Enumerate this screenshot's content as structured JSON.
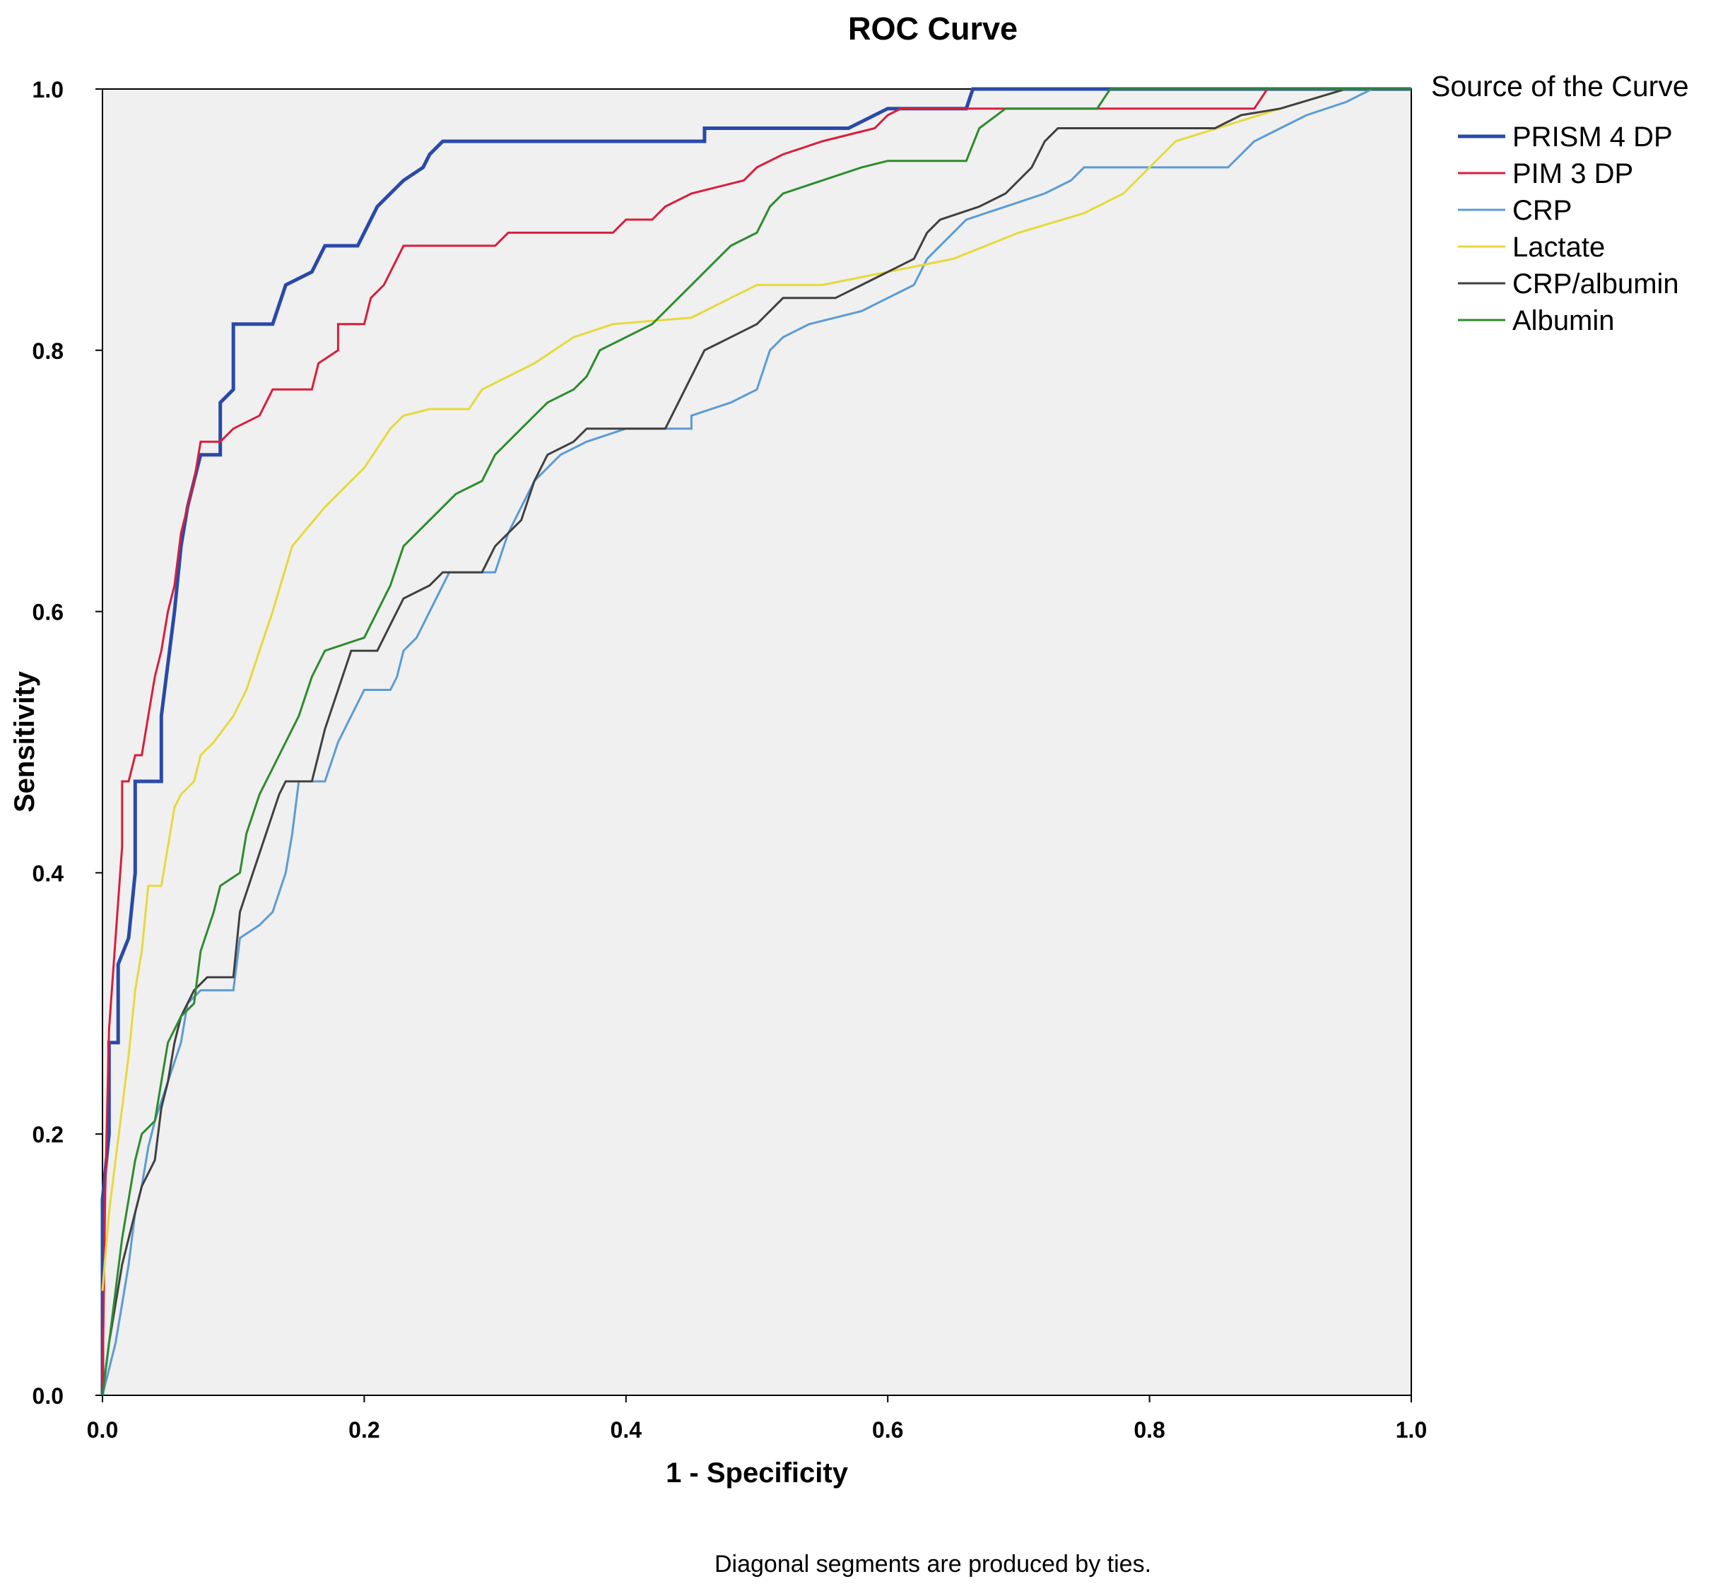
{
  "chart_data": {
    "type": "line",
    "title": "ROC Curve",
    "xlabel": "1 - Specificity",
    "ylabel": "Sensitivity",
    "xlim": [
      0,
      1
    ],
    "ylim": [
      0,
      1
    ],
    "x_ticks": [
      "0.0",
      "0.2",
      "0.4",
      "0.6",
      "0.8",
      "1.0"
    ],
    "y_ticks": [
      "0.0",
      "0.2",
      "0.4",
      "0.6",
      "0.8",
      "1.0"
    ],
    "legend_title": "Source of the Curve",
    "legend_position": "right",
    "footnote": "Diagonal segments are produced by ties.",
    "series": [
      {
        "name": "PRISM 4 DP",
        "color": "#2a4aa8",
        "points": [
          [
            0,
            0
          ],
          [
            0,
            0.15
          ],
          [
            0.005,
            0.2
          ],
          [
            0.005,
            0.27
          ],
          [
            0.012,
            0.27
          ],
          [
            0.012,
            0.33
          ],
          [
            0.02,
            0.35
          ],
          [
            0.025,
            0.4
          ],
          [
            0.025,
            0.47
          ],
          [
            0.045,
            0.47
          ],
          [
            0.045,
            0.52
          ],
          [
            0.05,
            0.56
          ],
          [
            0.055,
            0.6
          ],
          [
            0.06,
            0.65
          ],
          [
            0.065,
            0.68
          ],
          [
            0.07,
            0.7
          ],
          [
            0.075,
            0.72
          ],
          [
            0.09,
            0.72
          ],
          [
            0.09,
            0.76
          ],
          [
            0.1,
            0.77
          ],
          [
            0.1,
            0.82
          ],
          [
            0.13,
            0.82
          ],
          [
            0.14,
            0.85
          ],
          [
            0.16,
            0.86
          ],
          [
            0.17,
            0.88
          ],
          [
            0.195,
            0.88
          ],
          [
            0.2,
            0.89
          ],
          [
            0.21,
            0.91
          ],
          [
            0.22,
            0.92
          ],
          [
            0.23,
            0.93
          ],
          [
            0.245,
            0.94
          ],
          [
            0.25,
            0.95
          ],
          [
            0.26,
            0.96
          ],
          [
            0.46,
            0.96
          ],
          [
            0.46,
            0.97
          ],
          [
            0.57,
            0.97
          ],
          [
            0.6,
            0.985
          ],
          [
            0.66,
            0.985
          ],
          [
            0.665,
            1.0
          ],
          [
            1,
            1
          ]
        ]
      },
      {
        "name": "PIM 3 DP",
        "color": "#d81e3c",
        "points": [
          [
            0,
            0
          ],
          [
            0.002,
            0.15
          ],
          [
            0.005,
            0.28
          ],
          [
            0.01,
            0.35
          ],
          [
            0.015,
            0.42
          ],
          [
            0.015,
            0.47
          ],
          [
            0.02,
            0.47
          ],
          [
            0.025,
            0.49
          ],
          [
            0.03,
            0.49
          ],
          [
            0.035,
            0.52
          ],
          [
            0.04,
            0.55
          ],
          [
            0.045,
            0.57
          ],
          [
            0.05,
            0.6
          ],
          [
            0.055,
            0.62
          ],
          [
            0.06,
            0.66
          ],
          [
            0.065,
            0.68
          ],
          [
            0.07,
            0.7
          ],
          [
            0.075,
            0.73
          ],
          [
            0.09,
            0.73
          ],
          [
            0.1,
            0.74
          ],
          [
            0.12,
            0.75
          ],
          [
            0.13,
            0.77
          ],
          [
            0.16,
            0.77
          ],
          [
            0.165,
            0.79
          ],
          [
            0.18,
            0.8
          ],
          [
            0.18,
            0.82
          ],
          [
            0.2,
            0.82
          ],
          [
            0.205,
            0.84
          ],
          [
            0.215,
            0.85
          ],
          [
            0.225,
            0.87
          ],
          [
            0.23,
            0.88
          ],
          [
            0.3,
            0.88
          ],
          [
            0.31,
            0.89
          ],
          [
            0.39,
            0.89
          ],
          [
            0.4,
            0.9
          ],
          [
            0.42,
            0.9
          ],
          [
            0.43,
            0.91
          ],
          [
            0.45,
            0.92
          ],
          [
            0.49,
            0.93
          ],
          [
            0.5,
            0.94
          ],
          [
            0.52,
            0.95
          ],
          [
            0.55,
            0.96
          ],
          [
            0.59,
            0.97
          ],
          [
            0.6,
            0.98
          ],
          [
            0.61,
            0.985
          ],
          [
            0.88,
            0.985
          ],
          [
            0.89,
            1.0
          ],
          [
            1,
            1
          ]
        ]
      },
      {
        "name": "CRP",
        "color": "#5b9bd5",
        "points": [
          [
            0,
            0
          ],
          [
            0.01,
            0.04
          ],
          [
            0.015,
            0.07
          ],
          [
            0.02,
            0.1
          ],
          [
            0.025,
            0.14
          ],
          [
            0.03,
            0.16
          ],
          [
            0.035,
            0.19
          ],
          [
            0.04,
            0.21
          ],
          [
            0.05,
            0.24
          ],
          [
            0.06,
            0.27
          ],
          [
            0.065,
            0.3
          ],
          [
            0.075,
            0.31
          ],
          [
            0.1,
            0.31
          ],
          [
            0.105,
            0.35
          ],
          [
            0.12,
            0.36
          ],
          [
            0.13,
            0.37
          ],
          [
            0.14,
            0.4
          ],
          [
            0.145,
            0.43
          ],
          [
            0.15,
            0.47
          ],
          [
            0.17,
            0.47
          ],
          [
            0.18,
            0.5
          ],
          [
            0.19,
            0.52
          ],
          [
            0.2,
            0.54
          ],
          [
            0.22,
            0.54
          ],
          [
            0.225,
            0.55
          ],
          [
            0.23,
            0.57
          ],
          [
            0.24,
            0.58
          ],
          [
            0.25,
            0.6
          ],
          [
            0.26,
            0.62
          ],
          [
            0.265,
            0.63
          ],
          [
            0.3,
            0.63
          ],
          [
            0.31,
            0.66
          ],
          [
            0.32,
            0.68
          ],
          [
            0.33,
            0.7
          ],
          [
            0.34,
            0.71
          ],
          [
            0.35,
            0.72
          ],
          [
            0.37,
            0.73
          ],
          [
            0.4,
            0.74
          ],
          [
            0.45,
            0.74
          ],
          [
            0.45,
            0.75
          ],
          [
            0.48,
            0.76
          ],
          [
            0.5,
            0.77
          ],
          [
            0.51,
            0.8
          ],
          [
            0.52,
            0.81
          ],
          [
            0.54,
            0.82
          ],
          [
            0.58,
            0.83
          ],
          [
            0.6,
            0.84
          ],
          [
            0.62,
            0.85
          ],
          [
            0.63,
            0.87
          ],
          [
            0.65,
            0.89
          ],
          [
            0.66,
            0.9
          ],
          [
            0.69,
            0.91
          ],
          [
            0.72,
            0.92
          ],
          [
            0.74,
            0.93
          ],
          [
            0.75,
            0.94
          ],
          [
            0.8,
            0.94
          ],
          [
            0.86,
            0.94
          ],
          [
            0.88,
            0.96
          ],
          [
            0.9,
            0.97
          ],
          [
            0.92,
            0.98
          ],
          [
            0.95,
            0.99
          ],
          [
            0.97,
            1.0
          ],
          [
            1,
            1
          ]
        ]
      },
      {
        "name": "Lactate",
        "color": "#e6d93c",
        "points": [
          [
            0,
            0.08
          ],
          [
            0.005,
            0.14
          ],
          [
            0.01,
            0.18
          ],
          [
            0.015,
            0.22
          ],
          [
            0.02,
            0.26
          ],
          [
            0.025,
            0.31
          ],
          [
            0.03,
            0.34
          ],
          [
            0.035,
            0.39
          ],
          [
            0.045,
            0.39
          ],
          [
            0.05,
            0.42
          ],
          [
            0.055,
            0.45
          ],
          [
            0.06,
            0.46
          ],
          [
            0.07,
            0.47
          ],
          [
            0.075,
            0.49
          ],
          [
            0.085,
            0.5
          ],
          [
            0.1,
            0.52
          ],
          [
            0.11,
            0.54
          ],
          [
            0.12,
            0.57
          ],
          [
            0.13,
            0.6
          ],
          [
            0.145,
            0.65
          ],
          [
            0.17,
            0.68
          ],
          [
            0.2,
            0.71
          ],
          [
            0.22,
            0.74
          ],
          [
            0.23,
            0.75
          ],
          [
            0.25,
            0.755
          ],
          [
            0.28,
            0.755
          ],
          [
            0.29,
            0.77
          ],
          [
            0.31,
            0.78
          ],
          [
            0.33,
            0.79
          ],
          [
            0.36,
            0.81
          ],
          [
            0.39,
            0.82
          ],
          [
            0.45,
            0.825
          ],
          [
            0.48,
            0.84
          ],
          [
            0.5,
            0.85
          ],
          [
            0.55,
            0.85
          ],
          [
            0.6,
            0.86
          ],
          [
            0.65,
            0.87
          ],
          [
            0.7,
            0.89
          ],
          [
            0.75,
            0.905
          ],
          [
            0.78,
            0.92
          ],
          [
            0.8,
            0.94
          ],
          [
            0.82,
            0.96
          ],
          [
            0.9,
            0.985
          ],
          [
            0.95,
            1.0
          ],
          [
            1,
            1
          ]
        ]
      },
      {
        "name": "CRP/albumin",
        "color": "#404040",
        "points": [
          [
            0,
            0
          ],
          [
            0.005,
            0.04
          ],
          [
            0.01,
            0.07
          ],
          [
            0.015,
            0.1
          ],
          [
            0.02,
            0.12
          ],
          [
            0.025,
            0.14
          ],
          [
            0.03,
            0.16
          ],
          [
            0.04,
            0.18
          ],
          [
            0.045,
            0.22
          ],
          [
            0.05,
            0.24
          ],
          [
            0.055,
            0.27
          ],
          [
            0.06,
            0.29
          ],
          [
            0.07,
            0.31
          ],
          [
            0.08,
            0.32
          ],
          [
            0.1,
            0.32
          ],
          [
            0.105,
            0.37
          ],
          [
            0.115,
            0.4
          ],
          [
            0.125,
            0.43
          ],
          [
            0.135,
            0.46
          ],
          [
            0.14,
            0.47
          ],
          [
            0.16,
            0.47
          ],
          [
            0.17,
            0.51
          ],
          [
            0.18,
            0.54
          ],
          [
            0.19,
            0.57
          ],
          [
            0.21,
            0.57
          ],
          [
            0.22,
            0.59
          ],
          [
            0.23,
            0.61
          ],
          [
            0.25,
            0.62
          ],
          [
            0.26,
            0.63
          ],
          [
            0.29,
            0.63
          ],
          [
            0.3,
            0.65
          ],
          [
            0.31,
            0.66
          ],
          [
            0.32,
            0.67
          ],
          [
            0.33,
            0.7
          ],
          [
            0.34,
            0.72
          ],
          [
            0.36,
            0.73
          ],
          [
            0.37,
            0.74
          ],
          [
            0.43,
            0.74
          ],
          [
            0.44,
            0.76
          ],
          [
            0.45,
            0.78
          ],
          [
            0.46,
            0.8
          ],
          [
            0.48,
            0.81
          ],
          [
            0.5,
            0.82
          ],
          [
            0.52,
            0.84
          ],
          [
            0.56,
            0.84
          ],
          [
            0.58,
            0.85
          ],
          [
            0.6,
            0.86
          ],
          [
            0.62,
            0.87
          ],
          [
            0.63,
            0.89
          ],
          [
            0.64,
            0.9
          ],
          [
            0.67,
            0.91
          ],
          [
            0.69,
            0.92
          ],
          [
            0.71,
            0.94
          ],
          [
            0.72,
            0.96
          ],
          [
            0.73,
            0.97
          ],
          [
            0.85,
            0.97
          ],
          [
            0.87,
            0.98
          ],
          [
            0.9,
            0.985
          ],
          [
            0.95,
            1.0
          ],
          [
            1,
            1
          ]
        ]
      },
      {
        "name": "Albumin",
        "color": "#2e8b2e",
        "points": [
          [
            0,
            0
          ],
          [
            0.005,
            0.04
          ],
          [
            0.01,
            0.08
          ],
          [
            0.015,
            0.12
          ],
          [
            0.02,
            0.15
          ],
          [
            0.025,
            0.18
          ],
          [
            0.03,
            0.2
          ],
          [
            0.04,
            0.21
          ],
          [
            0.045,
            0.24
          ],
          [
            0.05,
            0.27
          ],
          [
            0.06,
            0.29
          ],
          [
            0.07,
            0.3
          ],
          [
            0.075,
            0.34
          ],
          [
            0.085,
            0.37
          ],
          [
            0.09,
            0.39
          ],
          [
            0.105,
            0.4
          ],
          [
            0.11,
            0.43
          ],
          [
            0.12,
            0.46
          ],
          [
            0.13,
            0.48
          ],
          [
            0.14,
            0.5
          ],
          [
            0.15,
            0.52
          ],
          [
            0.16,
            0.55
          ],
          [
            0.17,
            0.57
          ],
          [
            0.2,
            0.58
          ],
          [
            0.21,
            0.6
          ],
          [
            0.22,
            0.62
          ],
          [
            0.23,
            0.65
          ],
          [
            0.25,
            0.67
          ],
          [
            0.27,
            0.69
          ],
          [
            0.29,
            0.7
          ],
          [
            0.3,
            0.72
          ],
          [
            0.32,
            0.74
          ],
          [
            0.34,
            0.76
          ],
          [
            0.36,
            0.77
          ],
          [
            0.37,
            0.78
          ],
          [
            0.38,
            0.8
          ],
          [
            0.4,
            0.81
          ],
          [
            0.42,
            0.82
          ],
          [
            0.44,
            0.84
          ],
          [
            0.45,
            0.85
          ],
          [
            0.47,
            0.87
          ],
          [
            0.48,
            0.88
          ],
          [
            0.5,
            0.89
          ],
          [
            0.51,
            0.91
          ],
          [
            0.52,
            0.92
          ],
          [
            0.55,
            0.93
          ],
          [
            0.58,
            0.94
          ],
          [
            0.6,
            0.945
          ],
          [
            0.66,
            0.945
          ],
          [
            0.67,
            0.97
          ],
          [
            0.69,
            0.985
          ],
          [
            0.76,
            0.985
          ],
          [
            0.77,
            1.0
          ],
          [
            1,
            1
          ]
        ]
      }
    ]
  }
}
